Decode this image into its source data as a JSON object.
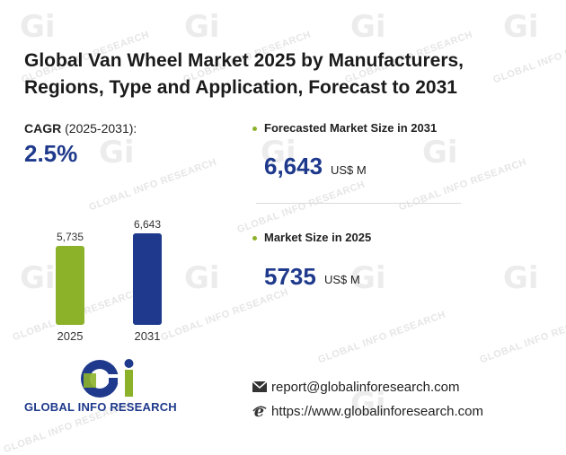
{
  "title": "Global Van Wheel Market 2025 by Manufacturers, Regions, Type and Application, Forecast to 2031",
  "cagr": {
    "label": "CAGR",
    "period": " (2025-2031):",
    "value": "2.5%"
  },
  "kpis": [
    {
      "label": "Forecasted Market Size in 2031",
      "value": "6,643",
      "unit": "US$ M"
    },
    {
      "label": "Market Size in 2025",
      "value": "5735",
      "unit": "US$ M"
    }
  ],
  "chart_data": {
    "type": "bar",
    "categories": [
      "2025",
      "2031"
    ],
    "values": [
      5735,
      6643
    ],
    "value_labels": [
      "5,735",
      "6,643"
    ],
    "colors": [
      "#8cb22a",
      "#1f3a8c"
    ]
  },
  "brand": {
    "name": "GLOBAL INFO RESEARCH",
    "logo_letters": "Gi",
    "watermark_text": "GLOBAL INFO RESEARCH"
  },
  "contact": {
    "email": "report@globalinforesearch.com",
    "website": "https://www.globalinforesearch.com"
  },
  "colors": {
    "accent_green": "#8cb22a",
    "accent_navy": "#1f3a8c"
  },
  "icons": {
    "email": "envelope-icon",
    "website": "ie-browser-icon"
  }
}
